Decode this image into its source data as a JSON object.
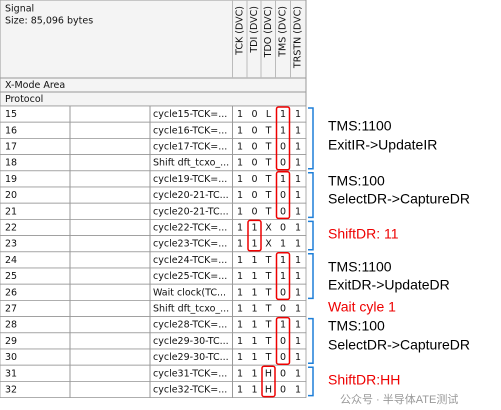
{
  "header": {
    "signal": "Signal",
    "size": "Size: 85,096 bytes",
    "columns": [
      "TCK (DVC)",
      "TDI (DVC)",
      "TDO (DVC)",
      "TMS (DVC)",
      "TRSTN (DVC)"
    ]
  },
  "sections": [
    "X-Mode Area",
    "Protocol"
  ],
  "rows": [
    {
      "num": "15",
      "name": "cycle15-TCK=...",
      "cells": [
        "1",
        "0",
        "L",
        "1",
        "1"
      ]
    },
    {
      "num": "16",
      "name": "cycle16-TCK=...",
      "cells": [
        "1",
        "0",
        "T",
        "1",
        "1"
      ]
    },
    {
      "num": "17",
      "name": "cycle17-TCK=...",
      "cells": [
        "1",
        "0",
        "T",
        "0",
        "1"
      ]
    },
    {
      "num": "18",
      "name": "Shift dft_tcxo_...",
      "cells": [
        "1",
        "0",
        "T",
        "0",
        "1"
      ]
    },
    {
      "num": "19",
      "name": "cycle19-TCK=...",
      "cells": [
        "1",
        "0",
        "T",
        "1",
        "1"
      ]
    },
    {
      "num": "20",
      "name": "cycle20-21-TC...",
      "cells": [
        "1",
        "0",
        "T",
        "0",
        "1"
      ]
    },
    {
      "num": "21",
      "name": "cycle20-21-TC...",
      "cells": [
        "1",
        "0",
        "T",
        "0",
        "1"
      ]
    },
    {
      "num": "22",
      "name": "cycle22-TCK=...",
      "cells": [
        "1",
        "1",
        "X",
        "0",
        "1"
      ]
    },
    {
      "num": "23",
      "name": "cycle23-TCK=...",
      "cells": [
        "1",
        "1",
        "X",
        "1",
        "1"
      ]
    },
    {
      "num": "24",
      "name": "cycle24-TCK=...",
      "cells": [
        "1",
        "1",
        "T",
        "1",
        "1"
      ]
    },
    {
      "num": "25",
      "name": "cycle25-TCK=...",
      "cells": [
        "1",
        "1",
        "T",
        "1",
        "1"
      ]
    },
    {
      "num": "26",
      "name": "Wait clock(TC...",
      "cells": [
        "1",
        "1",
        "T",
        "0",
        "1"
      ]
    },
    {
      "num": "27",
      "name": "Shift dft_tcxo_...",
      "cells": [
        "1",
        "1",
        "T",
        "0",
        "1"
      ]
    },
    {
      "num": "28",
      "name": "cycle28-TCK=...",
      "cells": [
        "1",
        "1",
        "T",
        "1",
        "1"
      ]
    },
    {
      "num": "29",
      "name": "cycle29-30-TC...",
      "cells": [
        "1",
        "1",
        "T",
        "0",
        "1"
      ]
    },
    {
      "num": "30",
      "name": "cycle29-30-TC...",
      "cells": [
        "1",
        "1",
        "T",
        "0",
        "1"
      ]
    },
    {
      "num": "31",
      "name": "cycle31-TCK=...",
      "cells": [
        "1",
        "1",
        "H",
        "0",
        "1"
      ]
    },
    {
      "num": "32",
      "name": "cycle32-TCK=...",
      "cells": [
        "1",
        "1",
        "H",
        "0",
        "1"
      ]
    }
  ],
  "annotations": [
    "TMS:1100",
    "ExitIR->UpdateIR",
    "TMS:100",
    "SelectDR->CaptureDR",
    "ShiftDR: 11",
    "TMS:1100",
    "ExitDR->UpdateDR",
    "Wait cyle 1",
    "TMS:100",
    "SelectDR->CaptureDR",
    "ShiftDR:HH"
  ],
  "watermark": "公众号 · 半导体ATE测试"
}
